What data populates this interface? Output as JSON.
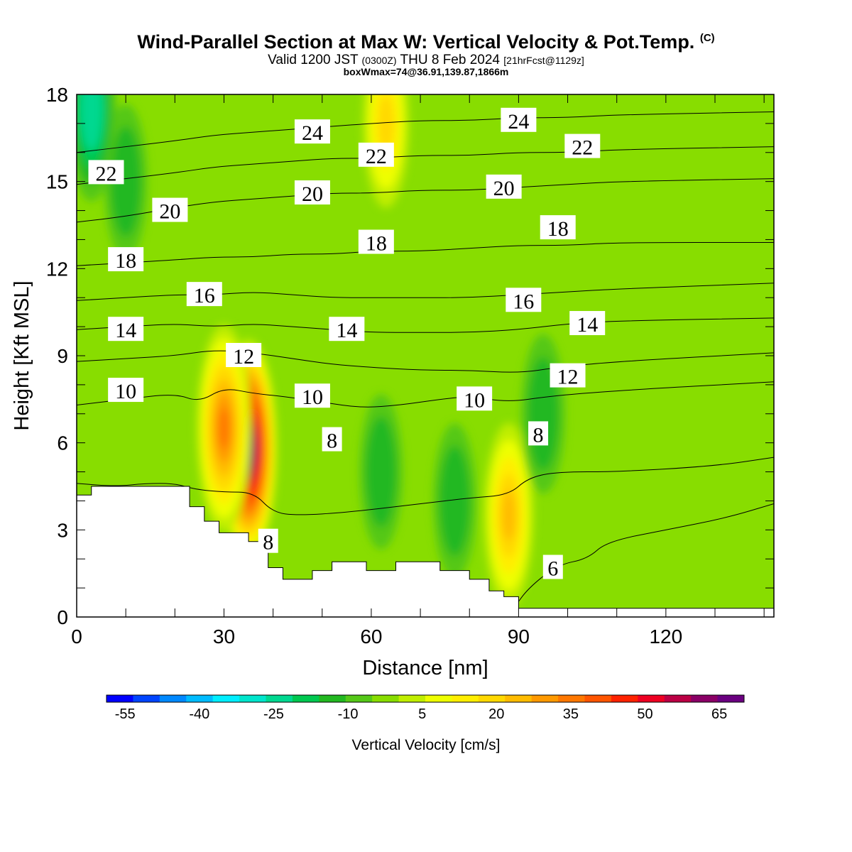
{
  "header": {
    "title": "Wind-Parallel Section at Max W: Vertical Velocity & Pot.Temp.",
    "copyright": "(C)",
    "valid_prefix": "Valid 1200 JST",
    "utc": "(0300Z)",
    "valid_date": "THU 8 Feb 2024",
    "forecast": "[21hrFcst@1129z]",
    "box_info": "boxWmax=74@36.91,139.87,1866m"
  },
  "chart_data": {
    "type": "heatmap",
    "xlabel": "Distance [nm]",
    "ylabel": "Height [Kft MSL]",
    "xlim": [
      0,
      142
    ],
    "ylim": [
      0,
      18
    ],
    "xticks": [
      0,
      30,
      60,
      90,
      120
    ],
    "yticks": [
      0,
      3,
      6,
      9,
      12,
      15,
      18
    ],
    "colorbar": {
      "title": "Vertical Velocity [cm/s]",
      "tick_values": [
        -55,
        -40,
        -25,
        -10,
        5,
        20,
        35,
        50,
        65
      ],
      "colors": [
        "#0000ff",
        "#0044ff",
        "#0088ff",
        "#00bbff",
        "#00eeff",
        "#00e5cc",
        "#00d890",
        "#00c850",
        "#22b820",
        "#55c818",
        "#88dd00",
        "#c0ee00",
        "#eeff00",
        "#ffee00",
        "#ffd800",
        "#ffbb00",
        "#ff9900",
        "#ff7700",
        "#ff5500",
        "#ff2200",
        "#ee0022",
        "#bb0044",
        "#8a0066",
        "#6a0080"
      ]
    },
    "w_background_cm_s": 0,
    "w_features": [
      {
        "x": 35,
        "z": 5.8,
        "w": 74
      },
      {
        "x": 30,
        "z": 6.5,
        "w": 35
      },
      {
        "x": 88,
        "z": 3.5,
        "w": 25
      },
      {
        "x": 63,
        "z": 17,
        "w": 18
      },
      {
        "x": 10,
        "z": 15,
        "w": -12
      },
      {
        "x": 3,
        "z": 17.5,
        "w": -25
      },
      {
        "x": 62,
        "z": 5,
        "w": -12
      },
      {
        "x": 77,
        "z": 4,
        "w": -12
      },
      {
        "x": 95,
        "z": 7,
        "w": -14
      }
    ],
    "theta_contours": [
      {
        "label": "6",
        "points": [
          [
            89,
            0.3
          ],
          [
            92,
            1
          ],
          [
            98,
            1.8
          ],
          [
            104,
            2
          ],
          [
            108,
            2.6
          ],
          [
            120,
            3
          ],
          [
            132,
            3.4
          ],
          [
            142,
            3.9
          ]
        ]
      },
      {
        "label": "8",
        "points": [
          [
            0,
            4.6
          ],
          [
            8,
            4.5
          ],
          [
            14,
            4.6
          ],
          [
            20,
            4.6
          ],
          [
            24,
            4.4
          ],
          [
            30,
            4.3
          ],
          [
            36,
            4.3
          ],
          [
            40,
            3.6
          ],
          [
            45,
            3.5
          ],
          [
            55,
            3.6
          ],
          [
            70,
            3.9
          ],
          [
            80,
            4.1
          ],
          [
            88,
            4.2
          ],
          [
            92,
            4.8
          ],
          [
            98,
            5
          ],
          [
            110,
            5
          ],
          [
            130,
            5.2
          ],
          [
            142,
            5.5
          ]
        ]
      },
      {
        "label": "10",
        "points": [
          [
            0,
            7.3
          ],
          [
            10,
            7.5
          ],
          [
            20,
            7.7
          ],
          [
            25,
            7.4
          ],
          [
            30,
            7.9
          ],
          [
            36,
            7.7
          ],
          [
            42,
            7.6
          ],
          [
            50,
            7.4
          ],
          [
            58,
            7.2
          ],
          [
            66,
            7.3
          ],
          [
            74,
            7.5
          ],
          [
            80,
            7.6
          ],
          [
            88,
            7.4
          ],
          [
            96,
            7.6
          ],
          [
            110,
            7.8
          ],
          [
            142,
            8.1
          ]
        ]
      },
      {
        "label": "12",
        "points": [
          [
            0,
            8.8
          ],
          [
            10,
            8.9
          ],
          [
            20,
            9
          ],
          [
            28,
            9.2
          ],
          [
            36,
            9.1
          ],
          [
            44,
            8.9
          ],
          [
            52,
            8.7
          ],
          [
            60,
            8.6
          ],
          [
            70,
            8.5
          ],
          [
            80,
            8.5
          ],
          [
            90,
            8.4
          ],
          [
            98,
            8.6
          ],
          [
            110,
            8.8
          ],
          [
            142,
            9.1
          ]
        ]
      },
      {
        "label": "14",
        "points": [
          [
            0,
            9.9
          ],
          [
            10,
            10
          ],
          [
            20,
            10.1
          ],
          [
            28,
            10
          ],
          [
            36,
            10.1
          ],
          [
            44,
            10
          ],
          [
            52,
            9.9
          ],
          [
            60,
            9.8
          ],
          [
            70,
            9.8
          ],
          [
            80,
            9.8
          ],
          [
            90,
            9.9
          ],
          [
            100,
            10.1
          ],
          [
            110,
            10.2
          ],
          [
            142,
            10.3
          ]
        ]
      },
      {
        "label": "16",
        "points": [
          [
            0,
            10.9
          ],
          [
            10,
            11
          ],
          [
            20,
            11.1
          ],
          [
            28,
            11.1
          ],
          [
            36,
            11.2
          ],
          [
            44,
            11.1
          ],
          [
            52,
            11
          ],
          [
            60,
            11
          ],
          [
            70,
            11
          ],
          [
            80,
            11
          ],
          [
            90,
            11.1
          ],
          [
            100,
            11.2
          ],
          [
            110,
            11.3
          ],
          [
            142,
            11.5
          ]
        ]
      },
      {
        "label": "18",
        "points": [
          [
            0,
            12.1
          ],
          [
            10,
            12.2
          ],
          [
            20,
            12.3
          ],
          [
            28,
            12.4
          ],
          [
            36,
            12.4
          ],
          [
            44,
            12.5
          ],
          [
            52,
            12.5
          ],
          [
            60,
            12.6
          ],
          [
            70,
            12.6
          ],
          [
            80,
            12.7
          ],
          [
            90,
            12.8
          ],
          [
            100,
            12.8
          ],
          [
            110,
            12.9
          ],
          [
            142,
            12.9
          ]
        ]
      },
      {
        "label": "20",
        "points": [
          [
            0,
            13.6
          ],
          [
            10,
            13.8
          ],
          [
            20,
            14.1
          ],
          [
            28,
            14.3
          ],
          [
            36,
            14.4
          ],
          [
            44,
            14.5
          ],
          [
            52,
            14.6
          ],
          [
            60,
            14.6
          ],
          [
            70,
            14.7
          ],
          [
            80,
            14.7
          ],
          [
            90,
            14.8
          ],
          [
            100,
            14.9
          ],
          [
            110,
            15
          ],
          [
            142,
            15.1
          ]
        ]
      },
      {
        "label": "22",
        "points": [
          [
            0,
            14.9
          ],
          [
            10,
            15.1
          ],
          [
            20,
            15.3
          ],
          [
            28,
            15.5
          ],
          [
            36,
            15.6
          ],
          [
            44,
            15.7
          ],
          [
            52,
            15.8
          ],
          [
            60,
            15.8
          ],
          [
            70,
            15.9
          ],
          [
            80,
            15.9
          ],
          [
            90,
            16
          ],
          [
            100,
            16
          ],
          [
            110,
            16.1
          ],
          [
            142,
            16.2
          ]
        ]
      },
      {
        "label": "24",
        "points": [
          [
            0,
            16
          ],
          [
            10,
            16.2
          ],
          [
            20,
            16.4
          ],
          [
            28,
            16.6
          ],
          [
            36,
            16.7
          ],
          [
            44,
            16.8
          ],
          [
            52,
            16.9
          ],
          [
            60,
            17
          ],
          [
            70,
            17.1
          ],
          [
            80,
            17.1
          ],
          [
            90,
            17.2
          ],
          [
            100,
            17.2
          ],
          [
            110,
            17.3
          ],
          [
            142,
            17.4
          ]
        ]
      }
    ],
    "contour_labels": [
      {
        "text": "22",
        "x": 6,
        "z": 15.3
      },
      {
        "text": "20",
        "x": 19,
        "z": 14
      },
      {
        "text": "20",
        "x": 48,
        "z": 14.6
      },
      {
        "text": "20",
        "x": 87,
        "z": 14.8
      },
      {
        "text": "22",
        "x": 61,
        "z": 15.9
      },
      {
        "text": "22",
        "x": 103,
        "z": 16.2
      },
      {
        "text": "24",
        "x": 48,
        "z": 16.7
      },
      {
        "text": "24",
        "x": 90,
        "z": 17.1
      },
      {
        "text": "18",
        "x": 10,
        "z": 12.3
      },
      {
        "text": "18",
        "x": 61,
        "z": 12.9
      },
      {
        "text": "18",
        "x": 98,
        "z": 13.4
      },
      {
        "text": "16",
        "x": 26,
        "z": 11.1
      },
      {
        "text": "16",
        "x": 91,
        "z": 10.9
      },
      {
        "text": "14",
        "x": 10,
        "z": 9.9
      },
      {
        "text": "14",
        "x": 55,
        "z": 9.9
      },
      {
        "text": "14",
        "x": 104,
        "z": 10.1
      },
      {
        "text": "12",
        "x": 34,
        "z": 9
      },
      {
        "text": "12",
        "x": 100,
        "z": 8.3
      },
      {
        "text": "10",
        "x": 10,
        "z": 7.8
      },
      {
        "text": "10",
        "x": 48,
        "z": 7.6
      },
      {
        "text": "10",
        "x": 81,
        "z": 7.5
      },
      {
        "text": "8",
        "x": 52,
        "z": 6.1
      },
      {
        "text": "8",
        "x": 94,
        "z": 6.3
      },
      {
        "text": "8",
        "x": 39,
        "z": 2.6
      },
      {
        "text": "6",
        "x": 97,
        "z": 1.7
      }
    ],
    "terrain": [
      [
        0,
        4.2
      ],
      [
        3,
        4.2
      ],
      [
        3,
        4.5
      ],
      [
        23,
        4.5
      ],
      [
        23,
        3.8
      ],
      [
        26,
        3.8
      ],
      [
        26,
        3.3
      ],
      [
        29,
        3.3
      ],
      [
        29,
        2.9
      ],
      [
        35,
        2.9
      ],
      [
        35,
        2.6
      ],
      [
        39,
        2.6
      ],
      [
        39,
        1.7
      ],
      [
        42,
        1.7
      ],
      [
        42,
        1.3
      ],
      [
        48,
        1.3
      ],
      [
        48,
        1.6
      ],
      [
        52,
        1.6
      ],
      [
        52,
        1.9
      ],
      [
        59,
        1.9
      ],
      [
        59,
        1.6
      ],
      [
        65,
        1.6
      ],
      [
        65,
        1.9
      ],
      [
        74,
        1.9
      ],
      [
        74,
        1.6
      ],
      [
        80,
        1.6
      ],
      [
        80,
        1.3
      ],
      [
        84,
        1.3
      ],
      [
        84,
        0.9
      ],
      [
        87,
        0.9
      ],
      [
        87,
        0.7
      ],
      [
        90,
        0.7
      ],
      [
        90,
        0.3
      ],
      [
        142,
        0.3
      ]
    ]
  }
}
